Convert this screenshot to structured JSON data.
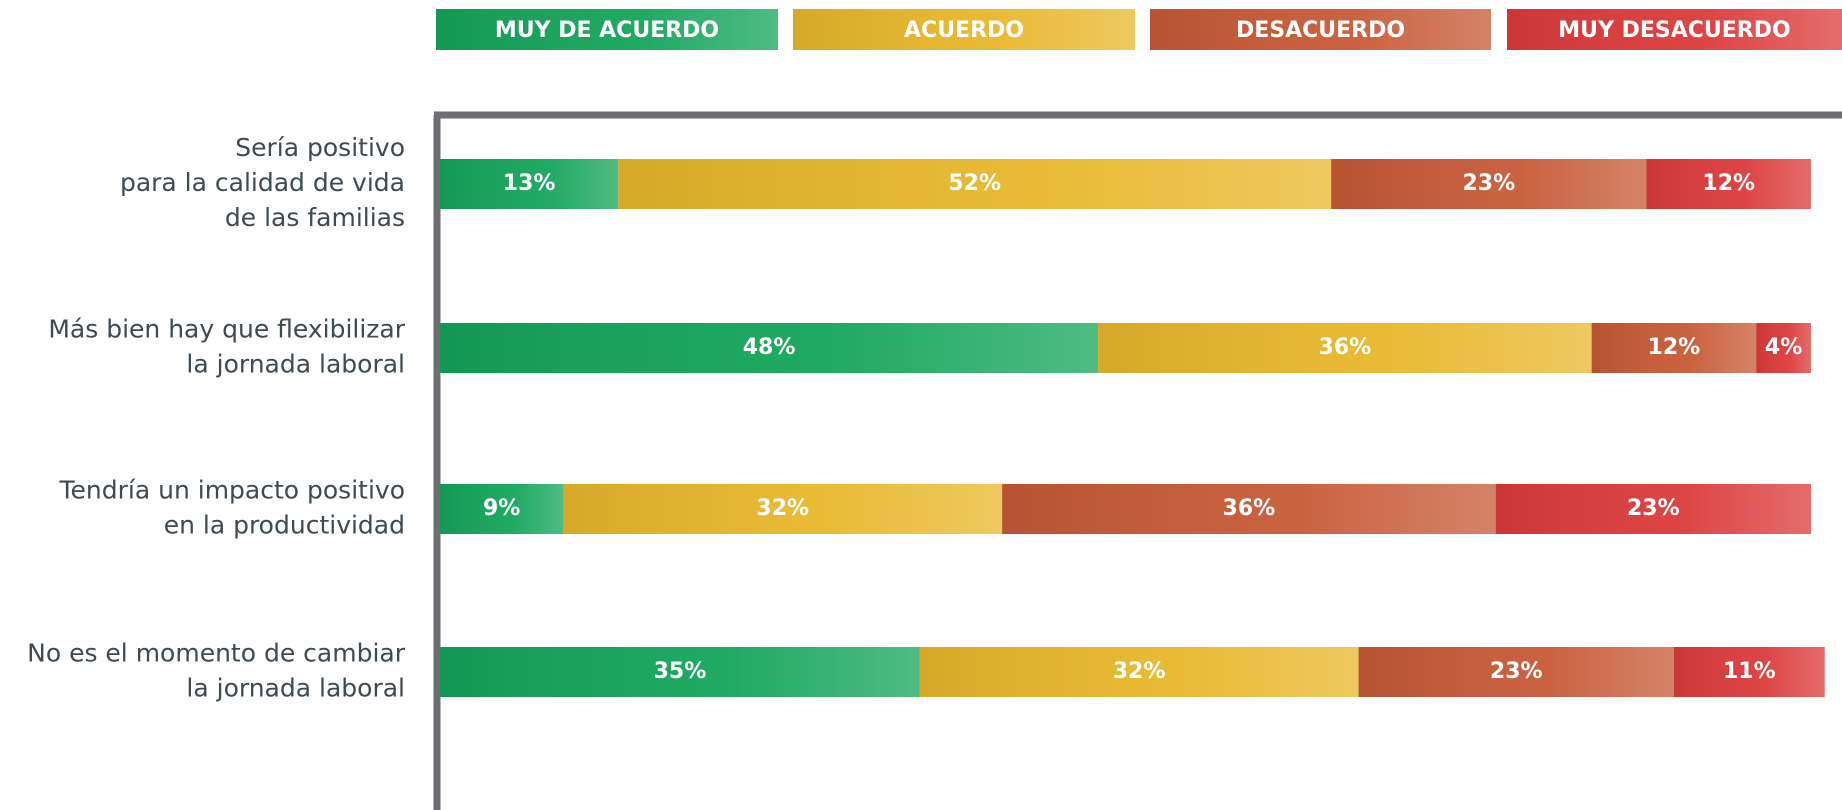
{
  "chart_data": {
    "type": "stacked-bar-horizontal",
    "categories": [
      [
        "Sería positivo",
        "para la calidad de vida",
        "de las familias"
      ],
      [
        "Más bien hay que flexibilizar",
        "la jornada laboral"
      ],
      [
        "Tendría un impacto positivo",
        "en la productividad"
      ],
      [
        "No es el momento de cambiar",
        "la jornada laboral"
      ]
    ],
    "xlim": [
      0,
      100
    ],
    "series": [
      {
        "name": "MUY DE ACUERDO",
        "color": "#14a55a",
        "values": [
          13,
          48,
          9,
          35
        ],
        "value_labels": [
          "13%",
          "48%",
          "9%",
          "35%"
        ]
      },
      {
        "name": "ACUERDO",
        "color": "#e9b72b",
        "values": [
          52,
          36,
          32,
          32
        ],
        "value_labels": [
          "52%",
          "36%",
          "32%",
          "32%"
        ]
      },
      {
        "name": "DESACUERDO",
        "color": "#c75a36",
        "values": [
          23,
          12,
          36,
          23
        ],
        "value_labels": [
          "23%",
          "12%",
          "36%",
          "23%"
        ]
      },
      {
        "name": "MUY DESACUERDO",
        "color": "#dc3b3b",
        "values": [
          12,
          4,
          23,
          11
        ],
        "value_labels": [
          "12%",
          "4%",
          "23%",
          "11%"
        ]
      }
    ],
    "legend": "top"
  }
}
